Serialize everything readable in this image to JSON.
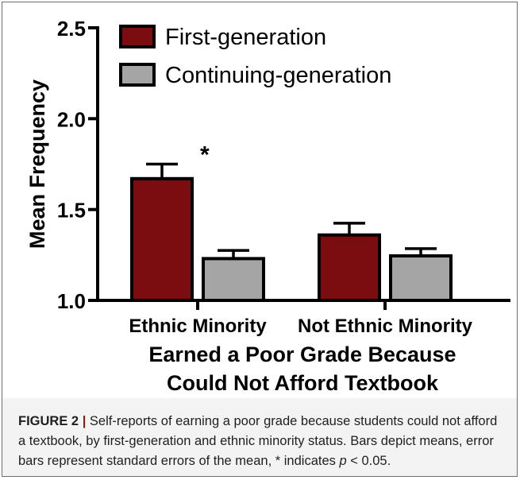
{
  "chart_data": {
    "type": "bar",
    "categories": [
      "Ethnic Minority",
      "Not Ethnic Minority"
    ],
    "series": [
      {
        "name": "First-generation",
        "color": "#7b0c0f",
        "values": [
          1.67,
          1.36
        ],
        "error": [
          0.08,
          0.065
        ]
      },
      {
        "name": "Continuing-generation",
        "color": "#a5a5a5",
        "values": [
          1.23,
          1.245
        ],
        "error": [
          0.045,
          0.04
        ]
      }
    ],
    "ylabel": "Mean Frequency",
    "xlabel_line1": "Earned a Poor Grade Because",
    "xlabel_line2": "Could Not Afford Textbook",
    "ylim": [
      1.0,
      2.5
    ],
    "yticks": [
      1.0,
      1.5,
      2.0,
      2.5
    ],
    "ytick_labels": [
      "1.0",
      "1.5",
      "2.0",
      "2.5"
    ],
    "annotations": [
      {
        "text": "*",
        "category": 0,
        "series": 0
      }
    ],
    "grid": false,
    "legend": "top-left"
  },
  "caption": {
    "label": "FIGURE 2",
    "separator": " | ",
    "text_before_p": "Self-reports of earning a poor grade because students could not afford a textbook, by first-generation and ethnic minority status. Bars depict means, error bars represent standard errors of the mean, * indicates ",
    "p_symbol": "p",
    "text_after_p": " < 0.05."
  }
}
